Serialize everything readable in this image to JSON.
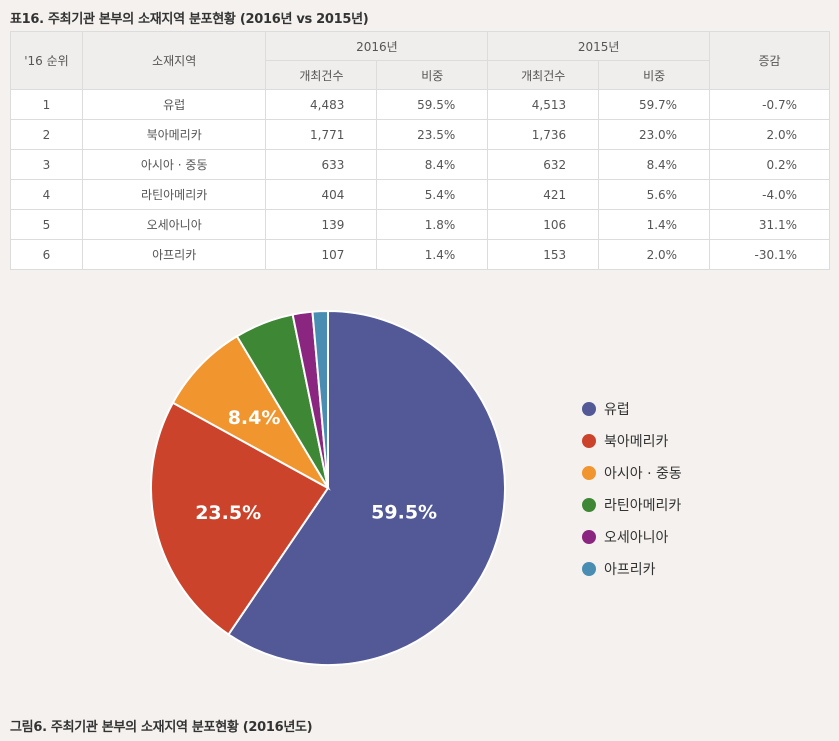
{
  "table_title": "표16. 주최기관 본부의 소재지역 분포현황 (2016년 vs 2015년)",
  "table": {
    "headers": {
      "rank": "'16 순위",
      "region": "소재지역",
      "year2016": "2016년",
      "year2015": "2015년",
      "change": "증감",
      "count": "개최건수",
      "share": "비중"
    },
    "rows": [
      {
        "rank": "1",
        "region": "유럽",
        "c2016": "4,483",
        "s2016": "59.5%",
        "c2015": "4,513",
        "s2015": "59.7%",
        "change": "-0.7%"
      },
      {
        "rank": "2",
        "region": "북아메리카",
        "c2016": "1,771",
        "s2016": "23.5%",
        "c2015": "1,736",
        "s2015": "23.0%",
        "change": "2.0%"
      },
      {
        "rank": "3",
        "region": "아시아 · 중동",
        "c2016": "633",
        "s2016": "8.4%",
        "c2015": "632",
        "s2015": "8.4%",
        "change": "0.2%"
      },
      {
        "rank": "4",
        "region": "라틴아메리카",
        "c2016": "404",
        "s2016": "5.4%",
        "c2015": "421",
        "s2015": "5.6%",
        "change": "-4.0%"
      },
      {
        "rank": "5",
        "region": "오세아니아",
        "c2016": "139",
        "s2016": "1.8%",
        "c2015": "106",
        "s2015": "1.4%",
        "change": "31.1%"
      },
      {
        "rank": "6",
        "region": "아프리카",
        "c2016": "107",
        "s2016": "1.4%",
        "c2015": "153",
        "s2015": "2.0%",
        "change": "-30.1%"
      }
    ]
  },
  "chart_data": {
    "type": "pie",
    "title": "그림6. 주최기관 본부의 소재지역 분포현황 (2016년도)",
    "labels": [
      "유럽",
      "북아메리카",
      "아시아 · 중동",
      "라틴아메리카",
      "오세아니아",
      "아프리카"
    ],
    "values": [
      59.5,
      23.5,
      8.4,
      5.4,
      1.8,
      1.4
    ],
    "data_labels": [
      "59.5%",
      "23.5%",
      "8.4%",
      "",
      "",
      ""
    ],
    "colors": [
      "#525996",
      "#cc432c",
      "#f1952e",
      "#3e8735",
      "#8a2580",
      "#4a8db3"
    ],
    "legend_position": "right",
    "start": "12 o'clock, clockwise"
  }
}
